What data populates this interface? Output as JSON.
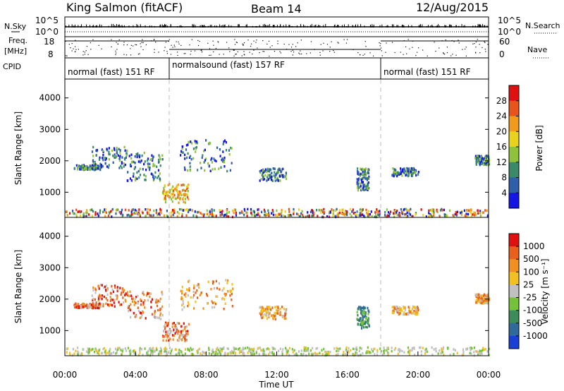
{
  "header": {
    "station": "King Salmon (fitACF)",
    "beam": "Beam 14",
    "date": "12/Aug/2015"
  },
  "status_panel": {
    "nsky_label": "N.Sky",
    "nsearch_label": "N.Search",
    "freq_label_1": "Freq.",
    "freq_label_2": "[MHz]",
    "nave_label": "Nave",
    "cpid_label": "CPID",
    "left_ticks": [
      "10^5",
      "10^0",
      "18",
      "8"
    ],
    "right_ticks": [
      "10^5",
      "10^0",
      "60",
      "0"
    ],
    "modes": [
      "normal (fast) 151 RF",
      "normalsound (fast) 157 RF",
      "normal (fast) 151 RF"
    ]
  },
  "chart_data": [
    {
      "type": "heatmap",
      "name": "power",
      "ylabel": "Slant Range [km]",
      "y_ticks": [
        "1000",
        "2000",
        "3000",
        "4000"
      ],
      "ylim": [
        200,
        4600
      ],
      "xlim": [
        0,
        24
      ],
      "colorbar_label": "Power [dB]",
      "colorbar_ticks": [
        "4",
        "8",
        "12",
        "16",
        "20",
        "24",
        "28"
      ],
      "colorbar_colors": [
        "#1515e6",
        "#2e5fa8",
        "#3a8a6a",
        "#8ec23a",
        "#e8d21a",
        "#f29a1a",
        "#e8541a",
        "#e01010"
      ],
      "echo_regions": [
        {
          "t0": 0.5,
          "t1": 2.0,
          "r0": 1750,
          "r1": 1900
        },
        {
          "t0": 1.5,
          "t1": 3.5,
          "r0": 1800,
          "r1": 2500
        },
        {
          "t0": 3.5,
          "t1": 5.5,
          "r0": 1400,
          "r1": 2300
        },
        {
          "t0": 5.5,
          "t1": 7.0,
          "r0": 700,
          "r1": 1300
        },
        {
          "t0": 6.5,
          "t1": 9.5,
          "r0": 1700,
          "r1": 2700
        },
        {
          "t0": 11.0,
          "t1": 12.5,
          "r0": 1400,
          "r1": 1800
        },
        {
          "t0": 16.5,
          "t1": 17.2,
          "r0": 1100,
          "r1": 1800
        },
        {
          "t0": 18.5,
          "t1": 20.0,
          "r0": 1550,
          "r1": 1800
        },
        {
          "t0": 23.2,
          "t1": 24.0,
          "r0": 1900,
          "r1": 2200
        },
        {
          "t0": 0.0,
          "t1": 24.0,
          "r0": 250,
          "r1": 500
        }
      ]
    },
    {
      "type": "heatmap",
      "name": "velocity",
      "ylabel": "Slant Range [km]",
      "y_ticks": [
        "1000",
        "2000",
        "3000",
        "4000"
      ],
      "ylim": [
        200,
        4600
      ],
      "xlim": [
        0,
        24
      ],
      "x_ticks": [
        "00:00",
        "04:00",
        "08:00",
        "12:00",
        "16:00",
        "20:00",
        "00:00"
      ],
      "xlabel": "Time UT",
      "colorbar_label": "Velocity [m s⁻¹]",
      "colorbar_ticks": [
        "1000",
        "500",
        "100",
        "25",
        "-25",
        "-100",
        "-500",
        "-1000"
      ],
      "colorbar_colors": [
        "#1a3fd6",
        "#2f6a9a",
        "#3c8c5a",
        "#74c23a",
        "#c0c0c0",
        "#f2c020",
        "#f09020",
        "#e8601c",
        "#e01010"
      ],
      "echo_regions": [
        {
          "t0": 0.5,
          "t1": 2.0,
          "r0": 1750,
          "r1": 1900
        },
        {
          "t0": 1.5,
          "t1": 3.5,
          "r0": 1800,
          "r1": 2500
        },
        {
          "t0": 3.5,
          "t1": 5.5,
          "r0": 1400,
          "r1": 2300
        },
        {
          "t0": 5.5,
          "t1": 7.0,
          "r0": 700,
          "r1": 1300
        },
        {
          "t0": 6.5,
          "t1": 9.5,
          "r0": 1700,
          "r1": 2700
        },
        {
          "t0": 11.0,
          "t1": 12.5,
          "r0": 1400,
          "r1": 1800
        },
        {
          "t0": 16.5,
          "t1": 17.2,
          "r0": 1100,
          "r1": 1800
        },
        {
          "t0": 18.5,
          "t1": 20.0,
          "r0": 1550,
          "r1": 1800
        },
        {
          "t0": 23.2,
          "t1": 24.0,
          "r0": 1900,
          "r1": 2200
        },
        {
          "t0": 0.0,
          "t1": 24.0,
          "r0": 250,
          "r1": 500
        }
      ]
    }
  ]
}
